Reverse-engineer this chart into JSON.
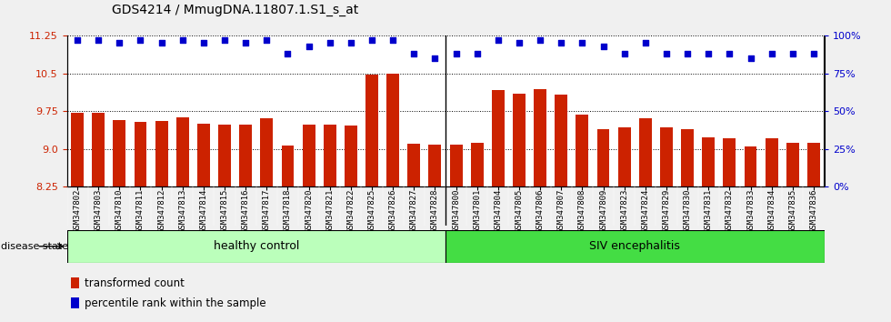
{
  "title": "GDS4214 / MmugDNA.11807.1.S1_s_at",
  "samples": [
    "GSM347802",
    "GSM347803",
    "GSM347810",
    "GSM347811",
    "GSM347812",
    "GSM347813",
    "GSM347814",
    "GSM347815",
    "GSM347816",
    "GSM347817",
    "GSM347818",
    "GSM347820",
    "GSM347821",
    "GSM347822",
    "GSM347825",
    "GSM347826",
    "GSM347827",
    "GSM347828",
    "GSM347800",
    "GSM347801",
    "GSM347804",
    "GSM347805",
    "GSM347806",
    "GSM347807",
    "GSM347808",
    "GSM347809",
    "GSM347823",
    "GSM347824",
    "GSM347829",
    "GSM347830",
    "GSM347831",
    "GSM347832",
    "GSM347833",
    "GSM347834",
    "GSM347835",
    "GSM347836"
  ],
  "bar_values": [
    9.72,
    9.72,
    9.58,
    9.53,
    9.55,
    9.63,
    9.5,
    9.48,
    9.48,
    9.6,
    9.07,
    9.48,
    9.48,
    9.46,
    10.47,
    10.5,
    9.1,
    9.08,
    9.09,
    9.12,
    10.17,
    10.1,
    10.18,
    10.08,
    9.68,
    9.4,
    9.42,
    9.6,
    9.42,
    9.4,
    9.23,
    9.22,
    9.05,
    9.22,
    9.12,
    9.12
  ],
  "percentile_values": [
    97,
    97,
    95,
    97,
    95,
    97,
    95,
    97,
    95,
    97,
    88,
    93,
    95,
    95,
    97,
    97,
    88,
    85,
    88,
    88,
    97,
    95,
    97,
    95,
    95,
    93,
    88,
    95,
    88,
    88,
    88,
    88,
    85,
    88,
    88,
    88
  ],
  "healthy_count": 18,
  "ylim_left": [
    8.25,
    11.25
  ],
  "ylim_right": [
    0,
    100
  ],
  "yticks_left": [
    8.25,
    9.0,
    9.75,
    10.5,
    11.25
  ],
  "yticks_right": [
    0,
    25,
    50,
    75,
    100
  ],
  "bar_color": "#cc2200",
  "dot_color": "#0000cc",
  "healthy_color": "#bbffbb",
  "siv_color": "#44dd44",
  "healthy_label": "healthy control",
  "siv_label": "SIV encephalitis",
  "disease_state_label": "disease state",
  "legend_bar_label": "transformed count",
  "legend_dot_label": "percentile rank within the sample",
  "background_color": "#f0f0f0",
  "plot_bg_color": "#ffffff",
  "xtick_bg_color": "#d8d8d8",
  "title_fontsize": 10,
  "tick_fontsize": 7,
  "label_fontsize": 9
}
